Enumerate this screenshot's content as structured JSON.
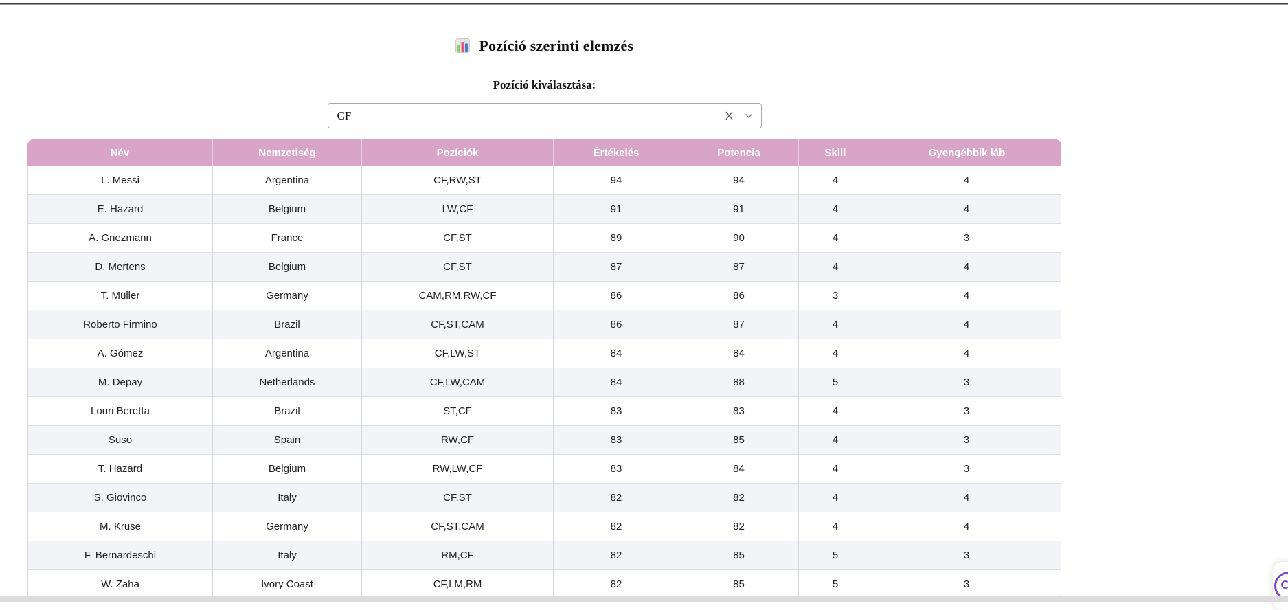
{
  "header": {
    "title": "Pozíció szerinti elemzés",
    "title_icon": "bar-chart-emoji",
    "selector_label": "Pozíció kiválasztása:"
  },
  "dropdown": {
    "value": "CF",
    "clear_icon": "x-clear",
    "arrow_icon": "chevron-down"
  },
  "table": {
    "columns": [
      "Név",
      "Nemzetiség",
      "Pozíciók",
      "Értékelés",
      "Potencia",
      "Skill",
      "Gyengébbik láb"
    ],
    "rows": [
      [
        "L. Messi",
        "Argentina",
        "CF,RW,ST",
        "94",
        "94",
        "4",
        "4"
      ],
      [
        "E. Hazard",
        "Belgium",
        "LW,CF",
        "91",
        "91",
        "4",
        "4"
      ],
      [
        "A. Griezmann",
        "France",
        "CF,ST",
        "89",
        "90",
        "4",
        "3"
      ],
      [
        "D. Mertens",
        "Belgium",
        "CF,ST",
        "87",
        "87",
        "4",
        "4"
      ],
      [
        "T. Müller",
        "Germany",
        "CAM,RM,RW,CF",
        "86",
        "86",
        "3",
        "4"
      ],
      [
        "Roberto Firmino",
        "Brazil",
        "CF,ST,CAM",
        "86",
        "87",
        "4",
        "4"
      ],
      [
        "A. Gómez",
        "Argentina",
        "CF,LW,ST",
        "84",
        "84",
        "4",
        "4"
      ],
      [
        "M. Depay",
        "Netherlands",
        "CF,LW,CAM",
        "84",
        "88",
        "5",
        "3"
      ],
      [
        "Louri Beretta",
        "Brazil",
        "ST,CF",
        "83",
        "83",
        "4",
        "3"
      ],
      [
        "Suso",
        "Spain",
        "RW,CF",
        "83",
        "85",
        "4",
        "3"
      ],
      [
        "T. Hazard",
        "Belgium",
        "RW,LW,CF",
        "83",
        "84",
        "4",
        "3"
      ],
      [
        "S. Giovinco",
        "Italy",
        "CF,ST",
        "82",
        "82",
        "4",
        "4"
      ],
      [
        "M. Kruse",
        "Germany",
        "CF,ST,CAM",
        "82",
        "82",
        "4",
        "4"
      ],
      [
        "F. Bernardeschi",
        "Italy",
        "RM,CF",
        "82",
        "85",
        "5",
        "3"
      ],
      [
        "W. Zaha",
        "Ivory Coast",
        "CF,LM,RM",
        "82",
        "85",
        "5",
        "3"
      ]
    ]
  },
  "colors": {
    "table_header_bg": "#d8a4c8",
    "table_header_text": "#ffffff",
    "row_stripe_bg": "#f2f4f8",
    "accent_purple": "#7b49c9",
    "top_line": "#3e3e3e"
  }
}
